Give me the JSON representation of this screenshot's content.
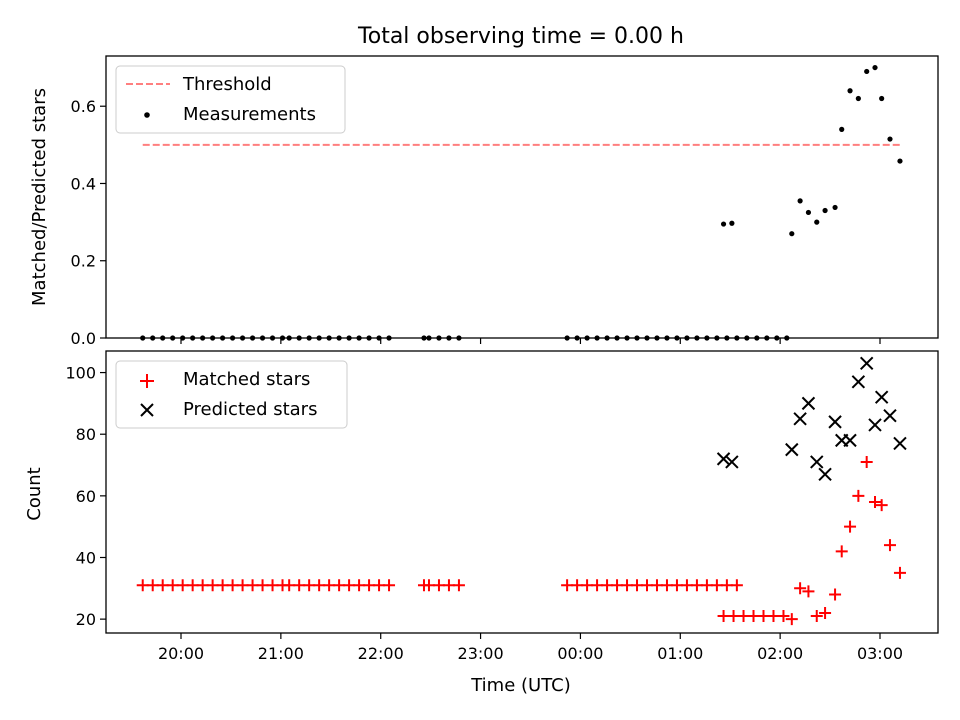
{
  "chart_data": {
    "type": "scatter",
    "title": "Total observing time = 0.00 h",
    "xlabel": "Time (UTC)",
    "xtick_labels": [
      "20:00",
      "21:00",
      "22:00",
      "23:00",
      "00:00",
      "01:00",
      "02:00",
      "03:00"
    ],
    "panels": [
      {
        "ylabel": "Matched/Predicted stars",
        "ylim": [
          0,
          0.73
        ],
        "yticks": [
          "0.0",
          "0.2",
          "0.4",
          "0.6"
        ],
        "legend": "top-left",
        "threshold": {
          "name": "Threshold",
          "value": 0.5,
          "x_start": "19:37",
          "x_end": "03:12",
          "color": "#ff7f7f"
        },
        "series": [
          {
            "name": "Measurements",
            "color": "#000000",
            "x": [
              "19:37",
              "19:43",
              "19:49",
              "19:55",
              "20:01",
              "20:07",
              "20:13",
              "20:19",
              "20:25",
              "20:31",
              "20:37",
              "20:43",
              "20:49",
              "20:55",
              "21:01",
              "21:05",
              "21:11",
              "21:17",
              "21:23",
              "21:29",
              "21:35",
              "21:41",
              "21:47",
              "21:53",
              "21:59",
              "22:05",
              "22:26",
              "22:29",
              "22:35",
              "22:41",
              "22:47",
              "23:52",
              "23:58",
              "00:04",
              "00:10",
              "00:16",
              "00:22",
              "00:28",
              "00:34",
              "00:40",
              "00:46",
              "00:52",
              "00:58",
              "01:04",
              "01:10",
              "01:16",
              "01:22",
              "01:28",
              "01:34",
              "01:40",
              "01:46",
              "01:52",
              "01:58",
              "02:04",
              "01:26",
              "01:31",
              "02:07",
              "02:12",
              "02:17",
              "02:22",
              "02:27",
              "02:33",
              "02:37",
              "02:42",
              "02:47",
              "02:52",
              "02:57",
              "03:01",
              "03:06",
              "03:12"
            ],
            "y": [
              0,
              0,
              0,
              0,
              0,
              0,
              0,
              0,
              0,
              0,
              0,
              0,
              0,
              0,
              0,
              0,
              0,
              0,
              0,
              0,
              0,
              0,
              0,
              0,
              0,
              0,
              0,
              0,
              0,
              0,
              0,
              0,
              0,
              0,
              0,
              0,
              0,
              0,
              0,
              0,
              0,
              0,
              0,
              0,
              0,
              0,
              0,
              0,
              0,
              0,
              0,
              0,
              0,
              0,
              0.295,
              0.297,
              0.27,
              0.355,
              0.325,
              0.3,
              0.33,
              0.338,
              0.54,
              0.64,
              0.62,
              0.69,
              0.7,
              0.62,
              0.515,
              0.458
            ]
          }
        ]
      },
      {
        "ylabel": "Count",
        "ylim": [
          15.5,
          107
        ],
        "yticks": [
          "20",
          "40",
          "60",
          "80",
          "100"
        ],
        "legend": "top-left",
        "series": [
          {
            "name": "Matched stars",
            "marker": "+",
            "color": "#ff0000",
            "x": [
              "19:37",
              "19:43",
              "19:49",
              "19:55",
              "20:01",
              "20:07",
              "20:13",
              "20:19",
              "20:25",
              "20:31",
              "20:37",
              "20:43",
              "20:49",
              "20:55",
              "21:01",
              "21:05",
              "21:11",
              "21:17",
              "21:23",
              "21:29",
              "21:35",
              "21:41",
              "21:47",
              "21:53",
              "21:59",
              "22:05",
              "22:26",
              "22:29",
              "22:35",
              "22:41",
              "22:47",
              "23:52",
              "23:58",
              "00:04",
              "00:10",
              "00:16",
              "00:22",
              "00:28",
              "00:34",
              "00:40",
              "00:46",
              "00:52",
              "00:58",
              "01:04",
              "01:10",
              "01:16",
              "01:22",
              "01:28",
              "01:34",
              "01:26",
              "01:32",
              "01:38",
              "01:44",
              "01:50",
              "01:56",
              "02:02",
              "02:07",
              "02:12",
              "02:17",
              "02:22",
              "02:27",
              "02:33",
              "02:37",
              "02:42",
              "02:47",
              "02:52",
              "02:57",
              "03:01",
              "03:06",
              "03:12"
            ],
            "y": [
              31,
              31,
              31,
              31,
              31,
              31,
              31,
              31,
              31,
              31,
              31,
              31,
              31,
              31,
              31,
              31,
              31,
              31,
              31,
              31,
              31,
              31,
              31,
              31,
              31,
              31,
              31,
              31,
              31,
              31,
              31,
              31,
              31,
              31,
              31,
              31,
              31,
              31,
              31,
              31,
              31,
              31,
              31,
              31,
              31,
              31,
              31,
              31,
              31,
              21,
              21,
              21,
              21,
              21,
              21,
              21,
              20,
              30,
              29,
              21,
              22,
              28,
              42,
              50,
              60,
              71,
              58,
              57,
              44,
              35
            ]
          },
          {
            "name": "Predicted stars",
            "marker": "x",
            "color": "#000000",
            "x": [
              "01:26",
              "01:31",
              "02:07",
              "02:12",
              "02:17",
              "02:22",
              "02:27",
              "02:33",
              "02:37",
              "02:42",
              "02:47",
              "02:52",
              "02:57",
              "03:01",
              "03:06",
              "03:12"
            ],
            "y": [
              72,
              71,
              75,
              85,
              90,
              71,
              67,
              84,
              78,
              78,
              97,
              103,
              83,
              92,
              86,
              77
            ]
          }
        ]
      }
    ]
  }
}
